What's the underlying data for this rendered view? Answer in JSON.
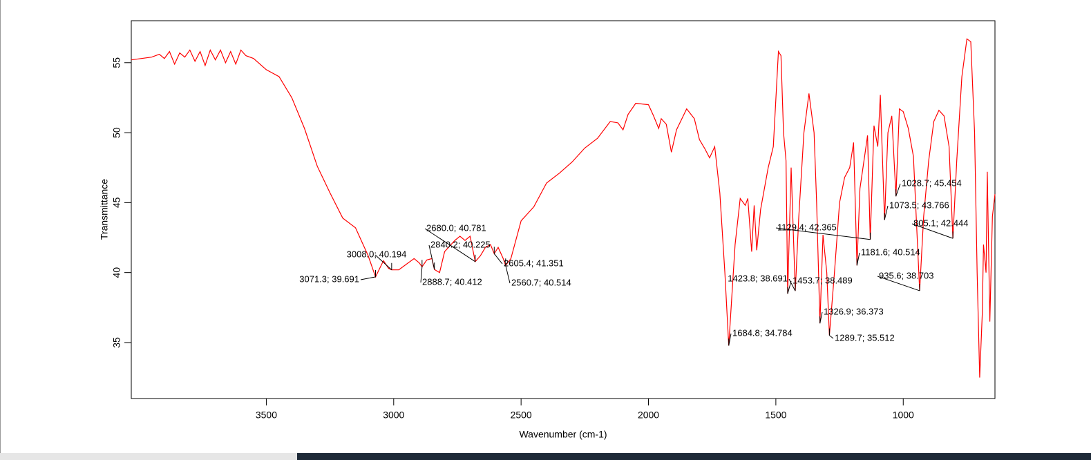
{
  "chart_data": {
    "type": "line",
    "xlabel": "Wavenumber (cm-1)",
    "ylabel": "Transmittance",
    "xlim": [
      4030,
      640
    ],
    "ylim": [
      31,
      58
    ],
    "xticks": [
      3500,
      3000,
      2500,
      2000,
      1500,
      1000
    ],
    "yticks": [
      35,
      40,
      45,
      50,
      55
    ],
    "color": "#ff0000",
    "x": [
      4030,
      3950,
      3920,
      3900,
      3880,
      3860,
      3840,
      3820,
      3800,
      3780,
      3760,
      3740,
      3720,
      3700,
      3680,
      3660,
      3640,
      3620,
      3600,
      3580,
      3550,
      3500,
      3450,
      3400,
      3350,
      3300,
      3250,
      3200,
      3150,
      3100,
      3071.3,
      3040,
      3020,
      3008,
      2980,
      2950,
      2920,
      2900,
      2888.7,
      2870,
      2850,
      2840.2,
      2820,
      2800,
      2760,
      2740,
      2720,
      2700,
      2680,
      2660,
      2640,
      2620,
      2605.4,
      2590,
      2570,
      2560.7,
      2540,
      2500,
      2450,
      2400,
      2350,
      2300,
      2250,
      2200,
      2150,
      2120,
      2100,
      2080,
      2050,
      2000,
      1980,
      1960,
      1950,
      1930,
      1910,
      1890,
      1850,
      1820,
      1800,
      1780,
      1760,
      1740,
      1720,
      1700,
      1684.8,
      1660,
      1640,
      1620,
      1610,
      1595,
      1585,
      1575,
      1560,
      1530,
      1510,
      1490,
      1480,
      1470,
      1460,
      1453.7,
      1440,
      1423.8,
      1410,
      1390,
      1370,
      1350,
      1340,
      1326.9,
      1315,
      1300,
      1289.7,
      1270,
      1250,
      1230,
      1210,
      1195,
      1181.6,
      1170,
      1150,
      1140,
      1129.4,
      1115,
      1100,
      1090,
      1073.5,
      1060,
      1045,
      1028.7,
      1015,
      1000,
      980,
      960,
      935.6,
      920,
      900,
      880,
      860,
      840,
      820,
      805.1,
      790,
      770,
      750,
      735,
      720,
      710,
      700,
      690,
      685,
      675,
      670,
      660,
      650,
      640
    ],
    "y": [
      55.2,
      55.4,
      55.6,
      55.3,
      55.8,
      54.9,
      55.7,
      55.4,
      55.9,
      55.1,
      55.8,
      54.8,
      55.9,
      55.2,
      55.9,
      55.0,
      55.8,
      54.9,
      55.9,
      55.5,
      55.3,
      54.5,
      54.0,
      52.5,
      50.3,
      47.6,
      45.7,
      43.9,
      43.2,
      41.2,
      39.691,
      40.85,
      40.3,
      40.194,
      40.2,
      40.6,
      41.0,
      40.7,
      40.412,
      40.9,
      41.0,
      40.225,
      40.0,
      41.5,
      42.3,
      42.6,
      42.3,
      42.6,
      40.781,
      41.2,
      41.8,
      42.0,
      41.351,
      41.8,
      41.0,
      40.514,
      41.0,
      43.7,
      44.7,
      46.4,
      47.1,
      47.9,
      48.9,
      49.6,
      50.8,
      50.7,
      50.2,
      51.3,
      52.1,
      52.0,
      51.2,
      50.3,
      51.0,
      50.6,
      48.6,
      50.2,
      51.7,
      51.0,
      49.5,
      48.9,
      48.2,
      49.0,
      45.7,
      40.0,
      34.784,
      42.0,
      45.3,
      44.8,
      45.3,
      41.5,
      44.8,
      41.6,
      44.5,
      47.5,
      49.0,
      55.8,
      55.5,
      50.0,
      48.0,
      38.489,
      47.5,
      38.691,
      44.0,
      50.0,
      52.8,
      50.0,
      45.0,
      36.373,
      42.7,
      40.0,
      35.512,
      40.0,
      45.0,
      46.8,
      47.5,
      49.3,
      40.514,
      46.0,
      48.5,
      49.8,
      42.365,
      50.5,
      49.0,
      52.7,
      43.766,
      50.0,
      51.2,
      45.454,
      51.7,
      51.5,
      50.3,
      48.3,
      38.703,
      44.0,
      48.0,
      50.8,
      51.6,
      51.2,
      49.0,
      42.444,
      48.0,
      54.0,
      56.7,
      56.5,
      50.0,
      40.0,
      32.5,
      37.0,
      42.0,
      40.0,
      47.2,
      36.5,
      44.0,
      45.6
    ],
    "annotations": [
      {
        "text": "3071.3; 39.691",
        "x": 3071.3,
        "y": 39.691
      },
      {
        "text": "3008.0; 40.194",
        "x": 3008.0,
        "y": 40.194
      },
      {
        "text": "2888.7; 40.412",
        "x": 2888.7,
        "y": 40.412
      },
      {
        "text": "2840.2; 40.225",
        "x": 2840.2,
        "y": 40.225
      },
      {
        "text": "2680.0; 40.781",
        "x": 2680.0,
        "y": 40.781
      },
      {
        "text": "2605.4; 41.351",
        "x": 2605.4,
        "y": 41.351
      },
      {
        "text": "2560.7; 40.514",
        "x": 2560.7,
        "y": 40.514
      },
      {
        "text": "1684.8; 34.784",
        "x": 1684.8,
        "y": 34.784
      },
      {
        "text": "1423.8; 38.691",
        "x": 1423.8,
        "y": 38.691
      },
      {
        "text": "1453.7; 38.489",
        "x": 1453.7,
        "y": 38.489
      },
      {
        "text": "1326.9; 36.373",
        "x": 1326.9,
        "y": 36.373
      },
      {
        "text": "1289.7; 35.512",
        "x": 1289.7,
        "y": 35.512
      },
      {
        "text": "1181.6; 40.514",
        "x": 1181.6,
        "y": 40.514
      },
      {
        "text": "1129.4; 42.365",
        "x": 1129.4,
        "y": 42.365
      },
      {
        "text": "1073.5; 43.766",
        "x": 1073.5,
        "y": 43.766
      },
      {
        "text": "1028.7; 45.454",
        "x": 1028.7,
        "y": 45.454
      },
      {
        "text": "935.6; 38.703",
        "x": 935.6,
        "y": 38.703
      },
      {
        "text": "805.1; 42.444",
        "x": 805.1,
        "y": 42.444
      }
    ]
  }
}
